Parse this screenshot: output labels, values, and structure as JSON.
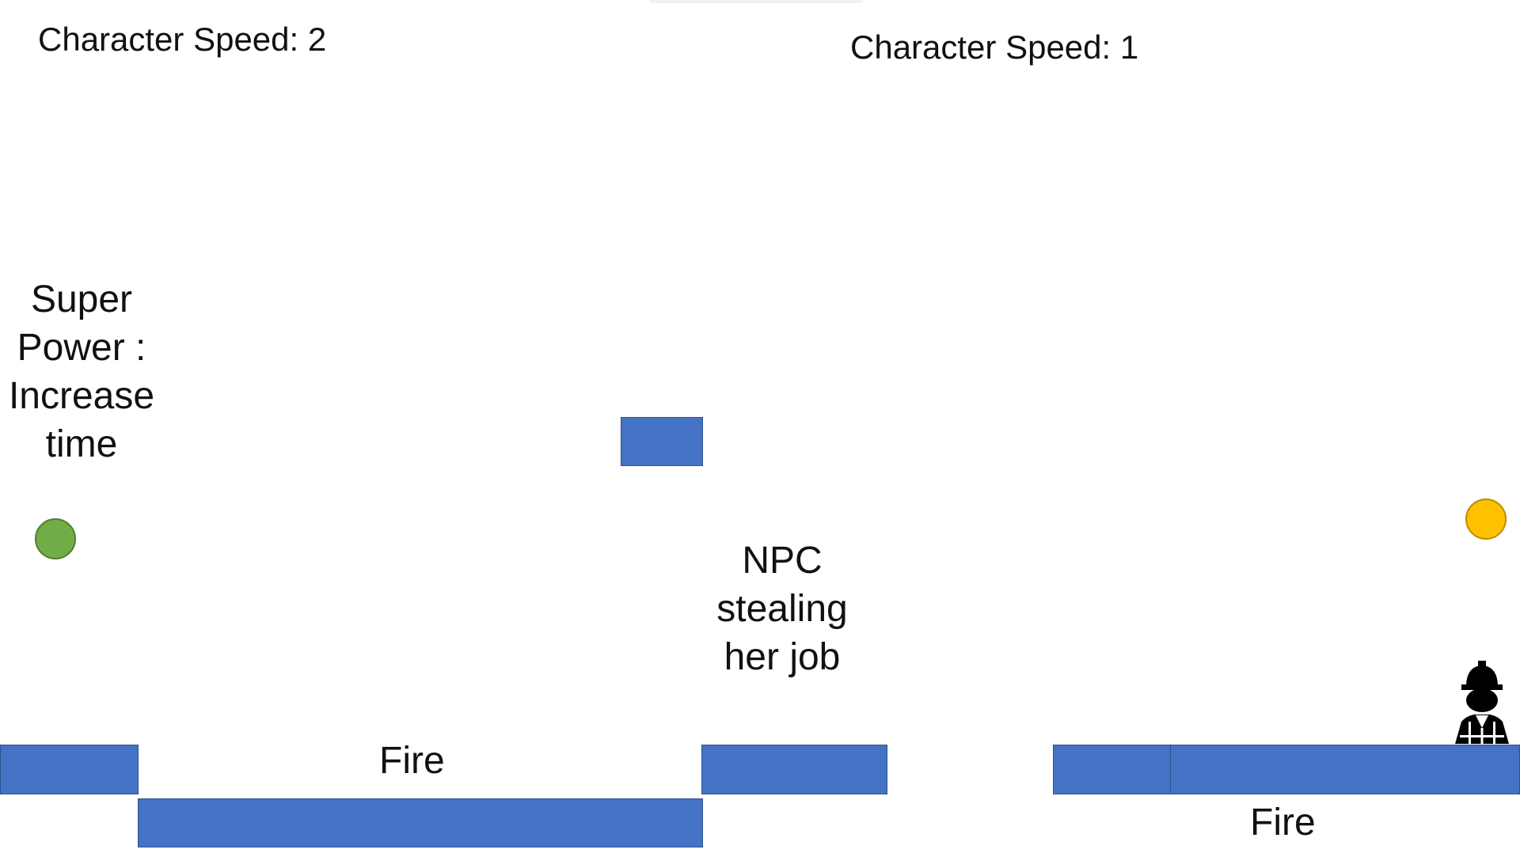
{
  "hud": {
    "left_speed_label": "Character Speed: 2",
    "right_speed_label": "Character Speed: 1"
  },
  "labels": {
    "super_power": "Super\nPower :\nIncrease\ntime",
    "npc": "NPC\nstealing\nher job",
    "fire_left": "Fire",
    "fire_right": "Fire"
  },
  "colors": {
    "platform": "#4472c4",
    "platform_border": "#2f528f",
    "green_orb": "#70ad47",
    "yellow_orb": "#ffc000"
  },
  "icons": {
    "player": "construction-worker-icon"
  }
}
